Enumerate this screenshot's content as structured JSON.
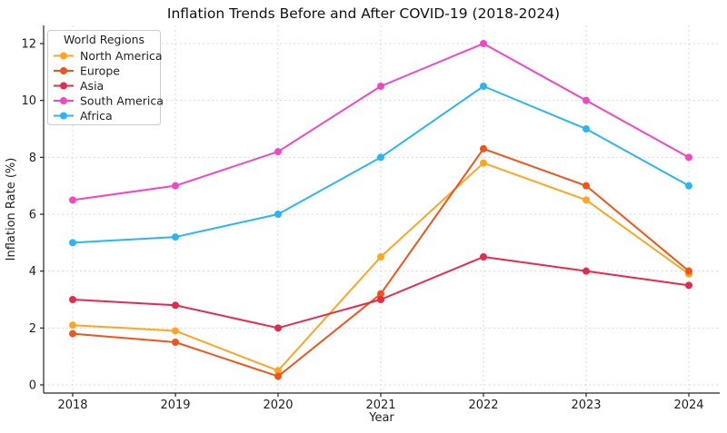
{
  "chart_data": {
    "type": "line",
    "title": "Inflation Trends Before and After COVID-19 (2018-2024)",
    "xlabel": "Year",
    "ylabel": "Inflation Rate (%)",
    "x": [
      2018,
      2019,
      2020,
      2021,
      2022,
      2023,
      2024
    ],
    "yticks": [
      0,
      2,
      4,
      6,
      8,
      10,
      12
    ],
    "ylim": [
      -0.3,
      12.65
    ],
    "grid": true,
    "grid_color": "#d9d9d9",
    "axis_color": "#262626",
    "text_color": "#1f1f1f",
    "legend": {
      "title": "World Regions",
      "position": "upper-left"
    },
    "marker": "circle",
    "line_width": 2,
    "series": [
      {
        "name": "North America",
        "color": "#FFA520",
        "values": [
          2.1,
          1.9,
          0.5,
          4.5,
          7.8,
          6.5,
          3.9
        ]
      },
      {
        "name": "Europe",
        "color": "#F25318",
        "values": [
          1.8,
          1.5,
          0.3,
          3.2,
          8.3,
          7.0,
          4.0
        ]
      },
      {
        "name": "Asia",
        "color": "#E62A4C",
        "values": [
          3.0,
          2.8,
          2.0,
          3.0,
          4.5,
          4.0,
          3.5
        ]
      },
      {
        "name": "South America",
        "color": "#F346C5",
        "values": [
          6.5,
          7.0,
          8.2,
          10.5,
          12.0,
          10.0,
          8.0
        ]
      },
      {
        "name": "Africa",
        "color": "#29B6F6",
        "values": [
          5.0,
          5.2,
          6.0,
          8.0,
          10.5,
          9.0,
          7.0
        ]
      }
    ]
  }
}
